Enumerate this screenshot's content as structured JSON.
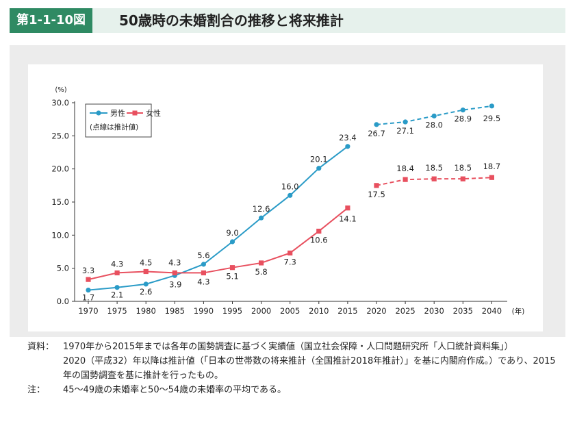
{
  "header": {
    "figure_label": "第1-1-10図",
    "title": "50歳時の未婚割合の推移と将来推計"
  },
  "chart_data": {
    "type": "line",
    "title": "50歳時の未婚割合の推移と将来推計",
    "ylabel": "(%)",
    "xlabel_unit": "(年)",
    "ylim": [
      0,
      30
    ],
    "yticks": [
      "0.0",
      "5.0",
      "10.0",
      "15.0",
      "20.0",
      "25.0",
      "30.0"
    ],
    "categories": [
      "1970",
      "1975",
      "1980",
      "1985",
      "1990",
      "1995",
      "2000",
      "2005",
      "2010",
      "2015",
      "2020",
      "2025",
      "2030",
      "2035",
      "2040"
    ],
    "series": [
      {
        "name": "男性",
        "color": "#2a9bc7",
        "marker": "circle",
        "actual": [
          1.7,
          2.1,
          2.6,
          3.9,
          5.6,
          9.0,
          12.6,
          16.0,
          20.1,
          23.4
        ],
        "estimated": [
          26.7,
          27.1,
          28.0,
          28.9,
          29.5
        ],
        "actual_labels": [
          "1.7",
          "2.1",
          "2.6",
          "3.9",
          "5.6",
          "9.0",
          "12.6",
          "16.0",
          "20.1",
          "23.4"
        ],
        "estimated_labels": [
          "26.7",
          "27.1",
          "28.0",
          "28.9",
          "29.5"
        ]
      },
      {
        "name": "女性",
        "color": "#e8505f",
        "marker": "square",
        "actual": [
          3.3,
          4.3,
          4.5,
          4.3,
          4.3,
          5.1,
          5.8,
          7.3,
          10.6,
          14.1
        ],
        "estimated": [
          17.5,
          18.4,
          18.5,
          18.5,
          18.7
        ],
        "actual_labels": [
          "3.3",
          "4.3",
          "4.5",
          "4.3",
          "4.3",
          "5.1",
          "5.8",
          "7.3",
          "10.6",
          "14.1"
        ],
        "estimated_labels": [
          "17.5",
          "18.4",
          "18.5",
          "18.5",
          "18.7"
        ]
      }
    ],
    "legend": {
      "position": "top-left",
      "entries": [
        "男性",
        "女性"
      ],
      "note": "(点線は推計値)"
    },
    "grid": false
  },
  "notes": {
    "source_label": "資料：",
    "source_text_1": "1970年から2015年までは各年の国勢調査に基づく実績値（国立社会保障・人口問題研究所「人口統計資料集」）",
    "source_text_2": "2020（平成32）年以降は推計値（「日本の世帯数の将来推計（全国推計2018年推計）」を基に内閣府作成。）であり、2015年の国勢調査を基に推計を行ったもの。",
    "note_label": "注：",
    "note_text": "45〜49歳の未婚率と50〜54歳の未婚率の平均である。"
  }
}
